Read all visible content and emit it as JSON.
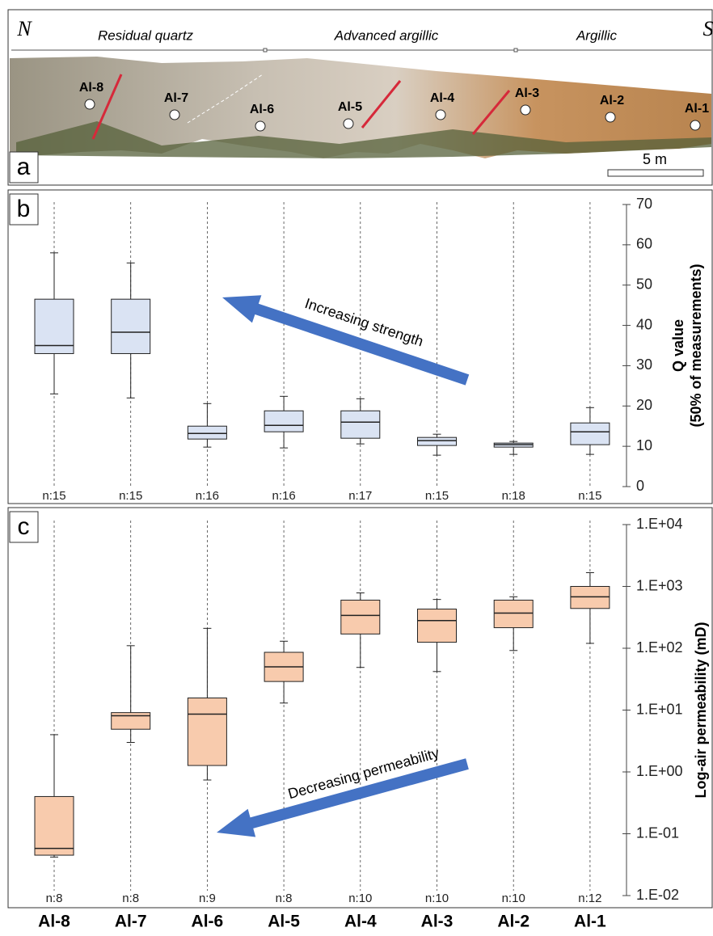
{
  "photo": {
    "panel_label": "a",
    "north": "N",
    "south": "S",
    "zones": [
      "Residual quartz",
      "Advanced argillic",
      "Argillic"
    ],
    "samples": [
      "Al-8",
      "Al-7",
      "Al-6",
      "Al-5",
      "Al-4",
      "Al-3",
      "Al-2",
      "Al-1"
    ],
    "scale_bar": "5 m"
  },
  "chart_data": [
    {
      "type": "box",
      "panel_label": "b",
      "ylabel": [
        "Q value",
        "(50% of measurements)"
      ],
      "annotation": "Increasing strength",
      "color": "#dae3f3",
      "min": [
        23,
        22,
        9.8,
        9.6,
        10.6,
        7.8,
        8,
        8
      ],
      "q1": [
        33,
        33,
        11.8,
        13.6,
        12,
        10.2,
        9.8,
        10.4
      ],
      "median": [
        35,
        38.3,
        13.2,
        15.2,
        16,
        11.4,
        10.4,
        13.6
      ],
      "q3": [
        46.5,
        46.5,
        15,
        18.8,
        18.8,
        12.2,
        10.8,
        15.8
      ],
      "max": [
        58,
        55.5,
        20.6,
        22.4,
        21.8,
        13,
        11.2,
        19.6
      ],
      "n_labels": [
        "n:15",
        "n:15",
        "n:16",
        "n:16",
        "n:17",
        "n:15",
        "n:18",
        "n:15"
      ],
      "ylim": [
        0,
        70
      ],
      "yticks": [
        0,
        10,
        20,
        30,
        40,
        50,
        60,
        70
      ],
      "log_scale": false
    },
    {
      "type": "box",
      "panel_label": "c",
      "ylabel": [
        "Log-air permeability (mD)"
      ],
      "annotation": "Decreasing permeability",
      "color": "#f8cbad",
      "categories": [
        "Al-8",
        "Al-7",
        "Al-6",
        "Al-5",
        "Al-4",
        "Al-3",
        "Al-2",
        "Al-1"
      ],
      "min": [
        0.042,
        3,
        0.74,
        13,
        49,
        42,
        92,
        120
      ],
      "q1": [
        0.045,
        4.9,
        1.27,
        29,
        170,
        125,
        215,
        440
      ],
      "median": [
        0.058,
        8.1,
        8.6,
        50,
        340,
        280,
        370,
        680
      ],
      "q3": [
        0.4,
        9.1,
        15.7,
        86,
        600,
        430,
        600,
        1000
      ],
      "max": [
        4,
        110,
        210,
        130,
        785,
        615,
        680,
        1670
      ],
      "n_labels": [
        "n:8",
        "n:8",
        "n:9",
        "n:8",
        "n:10",
        "n:10",
        "n:10",
        "n:12"
      ],
      "ylim": [
        0.01,
        10000
      ],
      "yticks": [
        {
          "value": 0.01,
          "label": "1.E-02"
        },
        {
          "value": 0.1,
          "label": "1.E-01"
        },
        {
          "value": 1,
          "label": "1.E+00"
        },
        {
          "value": 10,
          "label": "1.E+01"
        },
        {
          "value": 100,
          "label": "1.E+02"
        },
        {
          "value": 1000,
          "label": "1.E+03"
        },
        {
          "value": 10000,
          "label": "1.E+04"
        }
      ],
      "log_scale": true
    }
  ]
}
